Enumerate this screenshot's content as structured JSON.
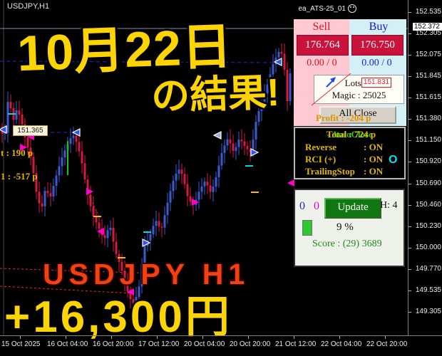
{
  "window": {
    "symbol_title": "USDJPY,H1",
    "ea_label": "ea_ATS-25_01"
  },
  "overlay": {
    "headline_date": "10月22日",
    "headline_result": "の結果!",
    "pair_label": "USDJPY H1",
    "profit_label": "+16,300円"
  },
  "chart_labels": {
    "price_tag_open": "151.365",
    "order_tag": "151.831",
    "left_line_1": "t : 190 p",
    "left_line_2": "1 : -517 p"
  },
  "trade_panel": {
    "sell_label": "Sell",
    "buy_label": "Buy",
    "sell_price": "176.764",
    "buy_price": "176.750",
    "sell_position": "0.00 / 0",
    "buy_position": "0.00 / 0",
    "lots_line": "Lots : 1",
    "magic_line": "Magic : 25025",
    "all_close_label": "All Close",
    "profit_text": "Profit : -204 p"
  },
  "status_panel": {
    "autoclose_text": "- AutoClose",
    "total_text": "Total : 724 p",
    "rows": [
      {
        "label": "Reverse",
        "value": ": ON"
      },
      {
        "label": "RCI (+)",
        "value": ": ON"
      },
      {
        "label": "TrailingStop",
        "value": ": ON"
      }
    ],
    "toggle_glyph": "O"
  },
  "update_panel": {
    "count_blue": "0",
    "count_magenta": "0",
    "update_label": "Update",
    "hedge_text": "H: 4",
    "percent_text": "9 %",
    "score_text": "Score : (29) 3689"
  },
  "chart_data": {
    "type": "candlestick",
    "symbol": "USDJPY",
    "timeframe": "H1",
    "current_price": "152.372",
    "up_color": "#3a5bd0",
    "down_color": "#d41a40",
    "y_ticks": [
      "152.535",
      "152.372",
      "152.305",
      "152.075",
      "151.845",
      "151.615",
      "151.380",
      "151.150",
      "150.920",
      "150.690",
      "150.460",
      "150.230",
      "150.000",
      "149.770",
      "149.535",
      "149.305"
    ],
    "x_ticks": [
      "15 Oct 2025",
      "16 Oct 04:00",
      "16 Oct 20:00",
      "17 Oct 12:00",
      "20 Oct 04:00",
      "20 Oct 20:00",
      "21 Oct 12:00",
      "22 Oct 04:00",
      "22 Oct 20:00"
    ],
    "price_path": [
      [
        2,
        151.3
      ],
      [
        8,
        151.15
      ],
      [
        14,
        151.65
      ],
      [
        20,
        151.35
      ],
      [
        26,
        151.5
      ],
      [
        32,
        151.36
      ],
      [
        38,
        151.15
      ],
      [
        46,
        150.95
      ],
      [
        54,
        150.55
      ],
      [
        60,
        150.4
      ],
      [
        66,
        150.65
      ],
      [
        72,
        150.52
      ],
      [
        80,
        150.75
      ],
      [
        88,
        150.95
      ],
      [
        96,
        151.1
      ],
      [
        104,
        151.22
      ],
      [
        110,
        151.12
      ],
      [
        116,
        150.95
      ],
      [
        124,
        150.6
      ],
      [
        132,
        150.35
      ],
      [
        140,
        150.22
      ],
      [
        148,
        150.08
      ],
      [
        156,
        150.25
      ],
      [
        164,
        149.95
      ],
      [
        172,
        149.78
      ],
      [
        180,
        149.55
      ],
      [
        188,
        149.38
      ],
      [
        196,
        149.52
      ],
      [
        204,
        150.0
      ],
      [
        212,
        150.12
      ],
      [
        220,
        150.3
      ],
      [
        228,
        150.18
      ],
      [
        236,
        150.45
      ],
      [
        244,
        150.7
      ],
      [
        252,
        150.85
      ],
      [
        258,
        150.78
      ],
      [
        266,
        150.52
      ],
      [
        274,
        150.45
      ],
      [
        282,
        150.62
      ],
      [
        290,
        150.72
      ],
      [
        298,
        150.58
      ],
      [
        306,
        150.78
      ],
      [
        314,
        151.05
      ],
      [
        322,
        151.18
      ],
      [
        330,
        151.02
      ],
      [
        338,
        151.18
      ],
      [
        346,
        151.08
      ],
      [
        354,
        151.02
      ],
      [
        362,
        151.4
      ],
      [
        370,
        151.58
      ],
      [
        378,
        151.78
      ],
      [
        386,
        152.0
      ],
      [
        394,
        152.12
      ],
      [
        400,
        152.05
      ],
      [
        404,
        151.5
      ],
      [
        410,
        151.95
      ]
    ]
  }
}
